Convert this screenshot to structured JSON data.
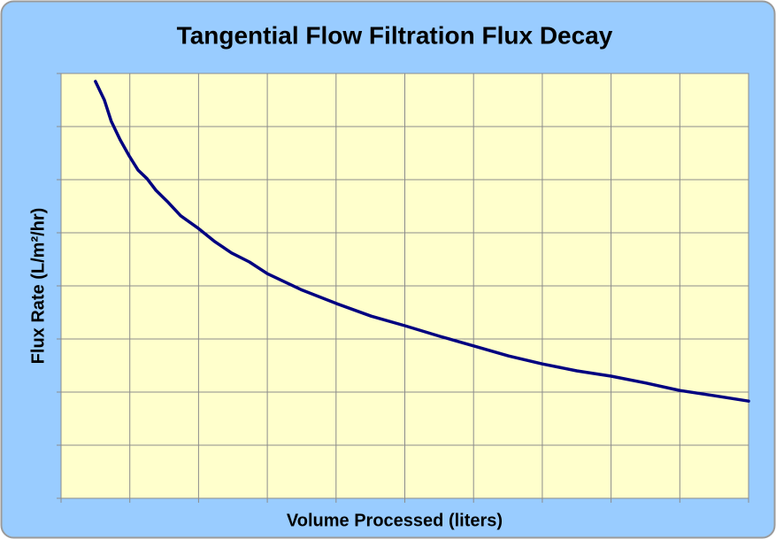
{
  "chart_data": {
    "type": "line",
    "title": "Tangential Flow Filtration Flux Decay",
    "x_label": "Volume Processed (liters)",
    "y_label": "Flux Rate (L/m²/hr)",
    "x": [
      0.5,
      0.63,
      0.73,
      0.86,
      0.99,
      1.12,
      1.25,
      1.38,
      1.56,
      1.74,
      2.0,
      2.24,
      2.48,
      2.74,
      3.0,
      3.49,
      4.0,
      4.51,
      5.0,
      5.51,
      6.0,
      6.51,
      7.0,
      7.5,
      8.0,
      8.51,
      9.0,
      9.51,
      10.0
    ],
    "series": [
      {
        "color": "#000080",
        "values": [
          7.85,
          7.5,
          7.1,
          6.75,
          6.45,
          6.18,
          6.02,
          5.8,
          5.57,
          5.32,
          5.08,
          4.83,
          4.62,
          4.45,
          4.23,
          3.93,
          3.67,
          3.43,
          3.25,
          3.05,
          2.87,
          2.68,
          2.53,
          2.4,
          2.3,
          2.17,
          2.03,
          1.93,
          1.83
        ]
      }
    ],
    "xlim": [
      0,
      10
    ],
    "xticks": [
      0,
      1,
      2,
      3,
      4,
      5,
      6,
      7,
      8,
      9,
      10
    ],
    "ylim": [
      0,
      8
    ],
    "yticks": [
      0,
      1,
      2,
      3,
      4,
      5,
      6,
      7,
      8
    ],
    "grid": true,
    "background": "#99ccff",
    "plot_background": "#ffffcc"
  }
}
